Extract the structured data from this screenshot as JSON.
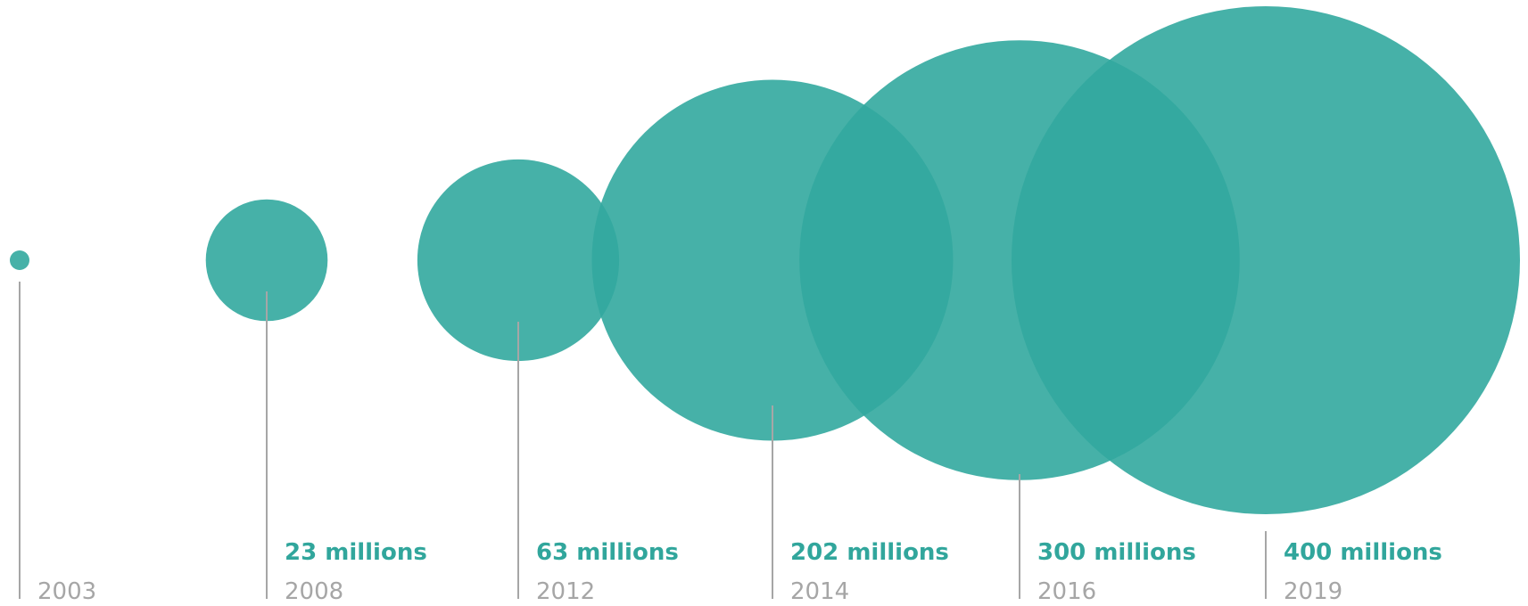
{
  "chart_data": {
    "type": "bubble-timeline",
    "title": "",
    "xlabel": "",
    "ylabel": "",
    "grid": false,
    "legend": "none",
    "series": [
      {
        "color": "#32a99f",
        "points": [
          {
            "year": "2003",
            "value": null,
            "value_label": ""
          },
          {
            "year": "2008",
            "value": 23,
            "value_label": "23 millions"
          },
          {
            "year": "2012",
            "value": 63,
            "value_label": "63 millions"
          },
          {
            "year": "2014",
            "value": 202,
            "value_label": "202 millions"
          },
          {
            "year": "2016",
            "value": 300,
            "value_label": "300 millions"
          },
          {
            "year": "2019",
            "value": 400,
            "value_label": "400 millions"
          }
        ]
      }
    ]
  },
  "colors": {
    "bubble": "#32a99f",
    "value_text": "#31a69c",
    "year_text": "#a6a6a6",
    "stem": "#a6a6a6"
  }
}
